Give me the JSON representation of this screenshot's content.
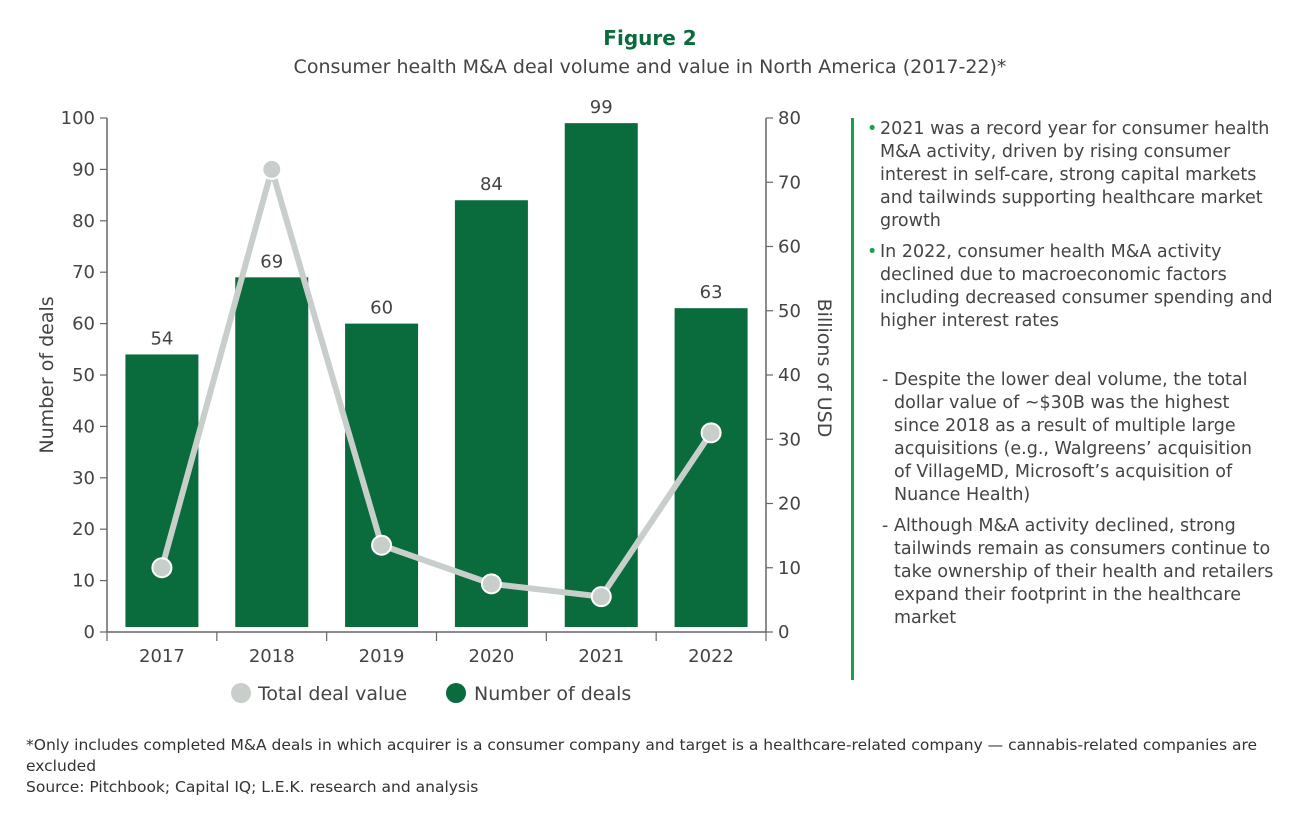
{
  "figure_label": "Figure 2",
  "chart_data": {
    "type": "bar",
    "title": "Consumer health M&A deal volume and value in North America (2017-22)*",
    "categories": [
      "2017",
      "2018",
      "2019",
      "2020",
      "2021",
      "2022"
    ],
    "series": [
      {
        "name": "Number of deals",
        "type": "bar",
        "axis": "left",
        "values": [
          54,
          69,
          60,
          84,
          99,
          63
        ],
        "color": "#0a6b3d"
      },
      {
        "name": "Total deal value",
        "type": "line",
        "axis": "right",
        "values": [
          10,
          72,
          13.5,
          7.5,
          5.5,
          31
        ],
        "color": "#c8cfcb"
      }
    ],
    "ylabel": "Number of deals",
    "ylim": [
      0,
      100
    ],
    "yticks": [
      "0",
      "10",
      "20",
      "30",
      "40",
      "50",
      "60",
      "70",
      "80",
      "90",
      "100"
    ],
    "y2label": "Billions of USD",
    "y2lim": [
      0,
      80
    ],
    "y2ticks": [
      "0",
      "10",
      "20",
      "30",
      "40",
      "50",
      "60",
      "70",
      "80"
    ],
    "data_labels": [
      "54",
      "69",
      "60",
      "84",
      "99",
      "63"
    ],
    "legend_position": "bottom",
    "grid": false
  },
  "notes": {
    "bullets": [
      "2021 was a record year for consumer health M&A activity, driven by rising consumer interest in self-care, strong capital markets and tailwinds supporting healthcare market growth",
      "In 2022, consumer health M&A activity declined due to macroeconomic factors including decreased consumer spending and higher interest rates"
    ],
    "sub_bullets": [
      "Despite the lower deal volume, the total dollar value of ~$30B was the highest since 2018 as a result of multiple large acquisitions (e.g., Walgreens’ acquisition of VillageMD, Microsoft’s acquisition of Nuance Health)",
      "Although M&A activity declined, strong tailwinds remain as consumers continue to take ownership of their health and retailers expand their footprint in the healthcare market"
    ]
  },
  "footnote": "*Only includes completed M&A deals in which acquirer is a consumer company and target is a healthcare-related company — cannabis-related companies are excluded",
  "source": "Source: Pitchbook; Capital IQ; L.E.K. research and analysis"
}
